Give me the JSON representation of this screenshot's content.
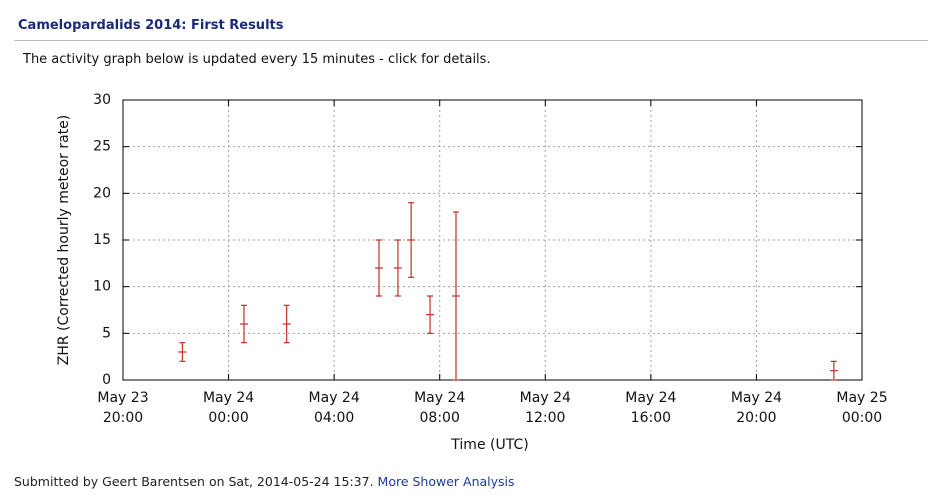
{
  "header": {
    "title": "Camelopardalids 2014: First Results"
  },
  "intro": "The activity graph below is updated every 15 minutes - click for details.",
  "chart_data": {
    "type": "errorbar",
    "ylabel": "ZHR (Corrected hourly meteor rate)",
    "xlabel": "Time (UTC)",
    "xlim": [
      "May 23 20:00",
      "May 25 00:00"
    ],
    "xticks": [
      "May 23 20:00",
      "May 24 00:00",
      "May 24 04:00",
      "May 24 08:00",
      "May 24 12:00",
      "May 24 16:00",
      "May 24 20:00",
      "May 25 00:00"
    ],
    "ylim": [
      0,
      30
    ],
    "yticks": [
      0,
      5,
      10,
      15,
      20,
      25,
      30
    ],
    "grid": true,
    "color": "#c0302c",
    "x": [
      "May 23 22:15",
      "May 24 00:35",
      "May 24 02:12",
      "May 24 05:42",
      "May 24 06:25",
      "May 24 06:55",
      "May 24 07:38",
      "May 24 08:37",
      "May 24 22:56"
    ],
    "values": [
      3,
      6,
      6,
      12,
      12,
      15,
      7,
      9,
      1
    ],
    "errors": [
      1,
      2,
      2,
      3,
      3,
      4,
      2,
      9,
      1
    ]
  },
  "footer": {
    "text": "Submitted by Geert Barentsen on Sat, 2014-05-24 15:37.",
    "link": "More Shower Analysis"
  }
}
